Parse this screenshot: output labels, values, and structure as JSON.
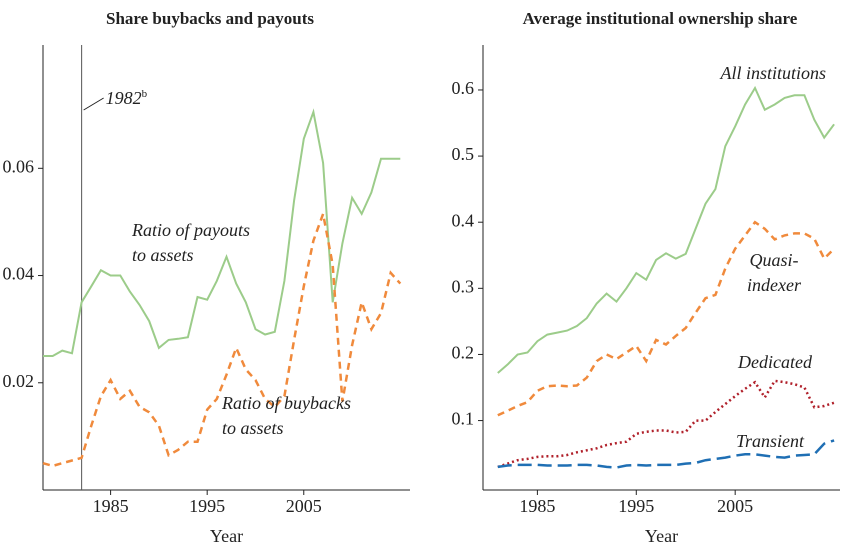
{
  "chart_data": [
    {
      "type": "line",
      "title": "Share buybacks and payouts",
      "xlabel": "Year",
      "x": [
        1978,
        1979,
        1980,
        1981,
        1982,
        1983,
        1984,
        1985,
        1986,
        1987,
        1988,
        1989,
        1990,
        1991,
        1992,
        1993,
        1994,
        1995,
        1996,
        1997,
        1998,
        1999,
        2000,
        2001,
        2002,
        2003,
        2004,
        2005,
        2006,
        2007,
        2008,
        2009,
        2010,
        2011,
        2012,
        2013,
        2014,
        2015
      ],
      "series": [
        {
          "name": "Ratio of payouts to assets",
          "color": "#9ccc8a",
          "style": "solid",
          "values": [
            0.025,
            0.025,
            0.026,
            0.0255,
            0.035,
            0.038,
            0.041,
            0.04,
            0.04,
            0.037,
            0.0345,
            0.0315,
            0.0265,
            0.028,
            0.0282,
            0.0285,
            0.036,
            0.0355,
            0.039,
            0.0435,
            0.0385,
            0.035,
            0.03,
            0.029,
            0.0295,
            0.039,
            0.054,
            0.0655,
            0.0705,
            0.061,
            0.035,
            0.046,
            0.0545,
            0.0515,
            0.0555,
            0.0618,
            0.0618,
            0.0618
          ]
        },
        {
          "name": "Ratio of buybacks to assets",
          "color": "#f08a3c",
          "style": "dashed",
          "values": [
            0.005,
            0.0045,
            0.005,
            0.0055,
            0.006,
            0.012,
            0.0175,
            0.0205,
            0.017,
            0.0185,
            0.0155,
            0.0145,
            0.012,
            0.0065,
            0.0075,
            0.009,
            0.009,
            0.015,
            0.017,
            0.0215,
            0.0265,
            0.0225,
            0.0205,
            0.017,
            0.0155,
            0.0175,
            0.028,
            0.038,
            0.0465,
            0.0515,
            0.042,
            0.0165,
            0.027,
            0.035,
            0.03,
            0.033,
            0.0405,
            0.0385
          ]
        }
      ],
      "annotations": [
        {
          "lines": [
            "Ratio of payouts",
            "to assets"
          ]
        },
        {
          "lines": [
            "Ratio of buybacks",
            "to assets"
          ]
        }
      ],
      "marker": {
        "x": 1982,
        "label": "1982",
        "note": "b"
      },
      "xlim": [
        1978,
        2016
      ],
      "xticks": [
        1985,
        1995,
        2005
      ],
      "ylim": [
        0,
        0.083
      ],
      "yticks": [
        0.02,
        0.04,
        0.06
      ]
    },
    {
      "type": "line",
      "title": "Average institutional ownership share",
      "xlabel": "Year",
      "x": [
        1981,
        1982,
        1983,
        1984,
        1985,
        1986,
        1987,
        1988,
        1989,
        1990,
        1991,
        1992,
        1993,
        1994,
        1995,
        1996,
        1997,
        1998,
        1999,
        2000,
        2001,
        2002,
        2003,
        2004,
        2005,
        2006,
        2007,
        2008,
        2009,
        2010,
        2011,
        2012,
        2013,
        2014,
        2015
      ],
      "series": [
        {
          "name": "All institutions",
          "color": "#9ccc8a",
          "style": "solid",
          "values": [
            0.172,
            0.185,
            0.2,
            0.203,
            0.22,
            0.23,
            0.233,
            0.236,
            0.243,
            0.255,
            0.277,
            0.292,
            0.28,
            0.3,
            0.323,
            0.313,
            0.343,
            0.353,
            0.345,
            0.352,
            0.39,
            0.428,
            0.45,
            0.515,
            0.545,
            0.578,
            0.603,
            0.57,
            0.578,
            0.588,
            0.592,
            0.592,
            0.555,
            0.528,
            0.548
          ]
        },
        {
          "name": "Quasi-indexer",
          "color": "#f08a3c",
          "style": "dashed",
          "values": [
            0.108,
            0.115,
            0.122,
            0.128,
            0.145,
            0.152,
            0.153,
            0.152,
            0.153,
            0.165,
            0.19,
            0.2,
            0.193,
            0.203,
            0.213,
            0.19,
            0.222,
            0.215,
            0.228,
            0.24,
            0.263,
            0.285,
            0.29,
            0.33,
            0.36,
            0.38,
            0.4,
            0.39,
            0.374,
            0.38,
            0.383,
            0.383,
            0.375,
            0.345,
            0.36
          ]
        },
        {
          "name": "Dedicated",
          "color": "#b0202a",
          "style": "dotted",
          "values": [
            0.03,
            0.035,
            0.04,
            0.042,
            0.045,
            0.046,
            0.046,
            0.048,
            0.052,
            0.055,
            0.058,
            0.063,
            0.066,
            0.068,
            0.08,
            0.083,
            0.085,
            0.085,
            0.082,
            0.083,
            0.1,
            0.1,
            0.113,
            0.125,
            0.137,
            0.148,
            0.158,
            0.135,
            0.16,
            0.158,
            0.155,
            0.15,
            0.12,
            0.122,
            0.127
          ]
        },
        {
          "name": "Transient",
          "color": "#1f6fb4",
          "style": "longdash",
          "values": [
            0.03,
            0.032,
            0.033,
            0.033,
            0.033,
            0.032,
            0.032,
            0.032,
            0.033,
            0.033,
            0.032,
            0.03,
            0.029,
            0.032,
            0.033,
            0.032,
            0.033,
            0.033,
            0.033,
            0.035,
            0.036,
            0.04,
            0.042,
            0.044,
            0.047,
            0.049,
            0.049,
            0.047,
            0.045,
            0.044,
            0.047,
            0.048,
            0.049,
            0.065,
            0.07
          ]
        }
      ],
      "annotations": [
        {
          "lines": [
            "All institutions"
          ]
        },
        {
          "lines": [
            "Quasi-",
            "indexer"
          ]
        },
        {
          "lines": [
            "Dedicated"
          ]
        },
        {
          "lines": [
            "Transient"
          ]
        }
      ],
      "xlim": [
        1979.5,
        2015.6
      ],
      "xticks": [
        1985,
        1995,
        2005
      ],
      "ylim": [
        -0.005,
        0.668
      ],
      "yticks": [
        0.1,
        0.2,
        0.3,
        0.4,
        0.5,
        0.6
      ]
    }
  ]
}
